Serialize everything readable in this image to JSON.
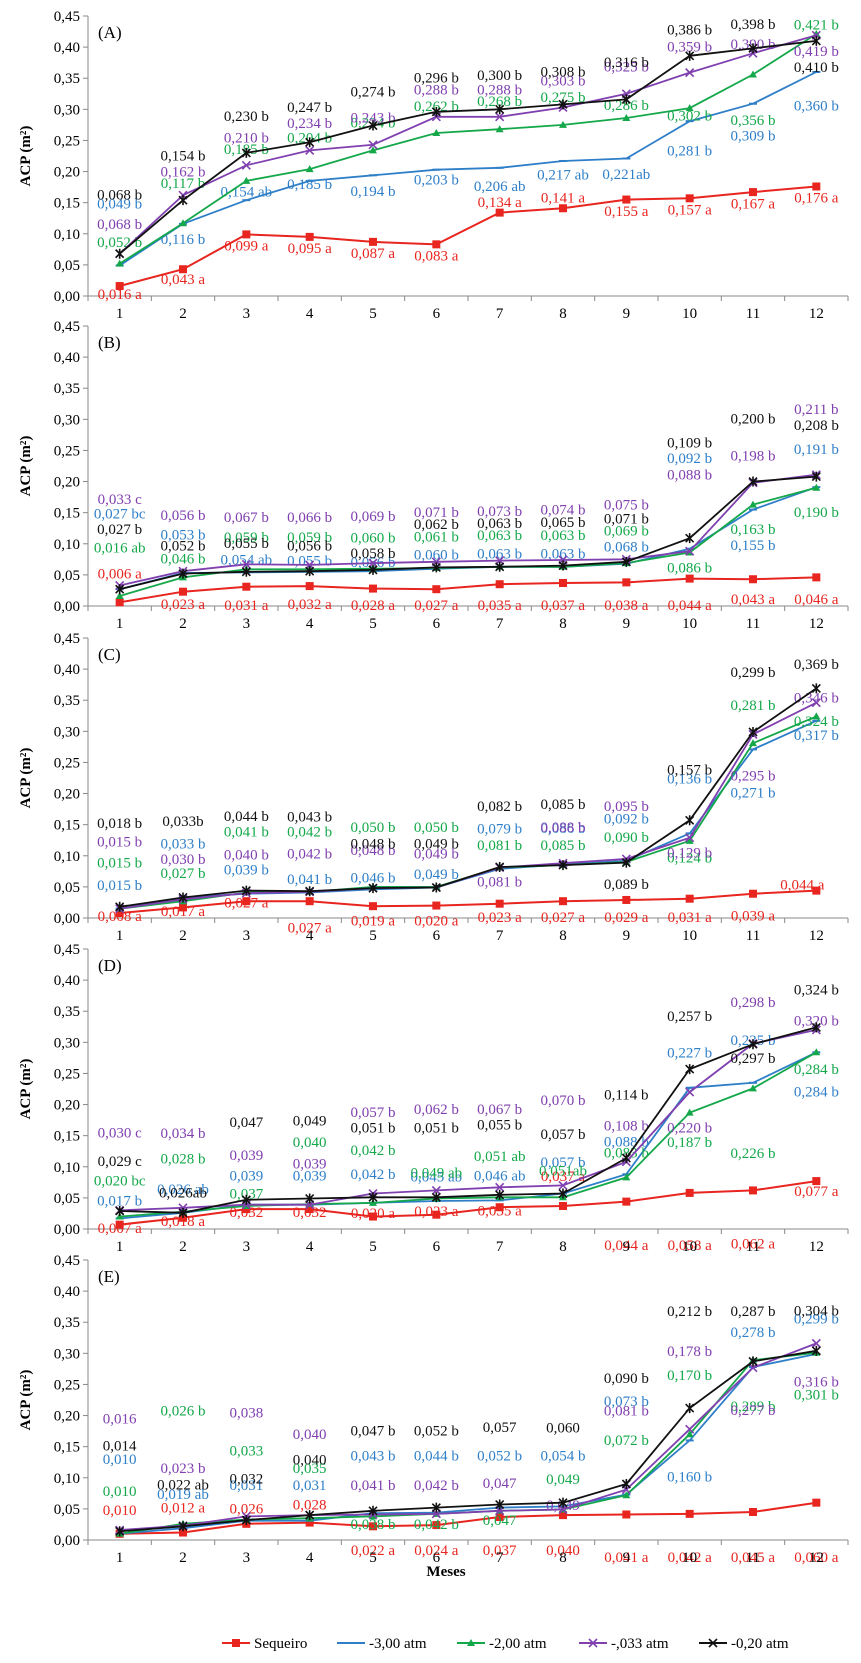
{
  "figure": {
    "xlabel": "Meses",
    "ylabel": "ACP (m²)",
    "series_colors": {
      "Sequeiro": "#e8251f",
      "-3,00 atm": "#2e7fc8",
      "-2,00 atm": "#14a84a",
      "-,033 atm": "#8040b0",
      "-0,20 atm": "#111111"
    },
    "legend": [
      "Sequeiro",
      "-3,00 atm",
      "-2,00 atm",
      "-,033 atm",
      "-0,20 atm"
    ]
  },
  "chart_data": [
    {
      "type": "line",
      "panel": "(A)",
      "x": [
        1,
        2,
        3,
        4,
        5,
        6,
        7,
        8,
        9,
        10,
        11,
        12
      ],
      "xlabel": "",
      "ylabel": "ACP (m²)",
      "ylim": [
        0,
        0.45
      ],
      "yticks": [
        "0,00",
        "0,05",
        "0,10",
        "0,15",
        "0,20",
        "0,25",
        "0,30",
        "0,35",
        "0,40",
        "0,45"
      ],
      "series": [
        {
          "name": "Sequeiro",
          "values": [
            0.016,
            0.043,
            0.099,
            0.095,
            0.087,
            0.083,
            0.134,
            0.141,
            0.155,
            0.157,
            0.167,
            0.176
          ],
          "labels": [
            "0,016 a",
            "0,043 a",
            "0,099 a",
            "0,095 a",
            "0,087 a",
            "0,083 a",
            "0,134 a",
            "0,141 a",
            "0,155 a",
            "0,157 a",
            "0,167 a",
            "0,176 a"
          ]
        },
        {
          "name": "-3,00 atm",
          "values": [
            0.049,
            0.116,
            0.154,
            0.185,
            0.194,
            0.203,
            0.206,
            0.217,
            0.221,
            0.281,
            0.309,
            0.36
          ],
          "labels": [
            "0,049 b",
            "0,116 b",
            "0,154 ab",
            "0,185 b",
            "0,194 b",
            "0,203 b",
            "0,206 ab",
            "0,217 ab",
            "0,221ab",
            "0,281 b",
            "0,309 b",
            "0,360 b"
          ]
        },
        {
          "name": "-2,00 atm",
          "values": [
            0.052,
            0.117,
            0.185,
            0.204,
            0.234,
            0.262,
            0.268,
            0.275,
            0.286,
            0.302,
            0.356,
            0.421
          ],
          "labels": [
            "0,052 b",
            "0,117 b",
            "0,185 b",
            "0,204 b",
            "0,234 b",
            "0,262 b",
            "0,268 b",
            "0,275 b",
            "0,286 b",
            "0,302 b",
            "0,356 b",
            "0,421 b"
          ]
        },
        {
          "name": "-,033 atm",
          "values": [
            0.068,
            0.162,
            0.21,
            0.234,
            0.243,
            0.288,
            0.288,
            0.303,
            0.325,
            0.359,
            0.39,
            0.419
          ],
          "labels": [
            "0,068 b",
            "0,162 b",
            "0,210 b",
            "0,234 b",
            "0,243 b",
            "0,288 b",
            "0,288 b",
            "0,303 b",
            "0,325 b",
            "0,359 b",
            "0,390 b",
            "0,419 b"
          ]
        },
        {
          "name": "-0,20 atm",
          "values": [
            0.068,
            0.154,
            0.23,
            0.247,
            0.274,
            0.296,
            0.3,
            0.308,
            0.316,
            0.386,
            0.398,
            0.41
          ],
          "labels": [
            "0,068 b",
            "0,154 b",
            "0,230 b",
            "0,247 b",
            "0,274 b",
            "0,296 b",
            "0,300 b",
            "0,308 b",
            "0,316 b",
            "0,386 b",
            "0,398 b",
            "0,410 b"
          ]
        }
      ]
    },
    {
      "type": "line",
      "panel": "(B)",
      "x": [
        1,
        2,
        3,
        4,
        5,
        6,
        7,
        8,
        9,
        10,
        11,
        12
      ],
      "xlabel": "",
      "ylabel": "ACP (m²)",
      "ylim": [
        0,
        0.45
      ],
      "yticks": [
        "0,00",
        "0,05",
        "0,10",
        "0,15",
        "0,20",
        "0,25",
        "0,30",
        "0,35",
        "0,40",
        "0,45"
      ],
      "series": [
        {
          "name": "Sequeiro",
          "values": [
            0.006,
            0.023,
            0.031,
            0.032,
            0.028,
            0.027,
            0.035,
            0.037,
            0.038,
            0.044,
            0.043,
            0.046
          ],
          "labels": [
            "0,006 a",
            "0,023 a",
            "0,031 a",
            "0,032 a",
            "0,028 a",
            "0,027 a",
            "0,035 a",
            "0,037 a",
            "0,038 a",
            "0,044 a",
            "0,043 a",
            "0,046 a"
          ]
        },
        {
          "name": "-3,00 atm",
          "values": [
            0.027,
            0.053,
            0.054,
            0.055,
            0.056,
            0.06,
            0.063,
            0.063,
            0.068,
            0.092,
            0.155,
            0.191
          ],
          "labels": [
            "0,027 bc",
            "0,053 b",
            "0,054 ab",
            "0,055 b",
            "0,056 b",
            "0,060 b",
            "0,063 b",
            "0,063 b",
            "0,068 b",
            "0,092 b",
            "0,155 b",
            "0,191 b"
          ]
        },
        {
          "name": "-2,00 atm",
          "values": [
            0.016,
            0.046,
            0.059,
            0.059,
            0.06,
            0.061,
            0.063,
            0.063,
            0.069,
            0.086,
            0.163,
            0.19
          ],
          "labels": [
            "0,016 ab",
            "0,046 b",
            "0,059 b",
            "0,059 b",
            "0,060 b",
            "0,061 b",
            "0,063 b",
            "0,063 b",
            "0,069 b",
            "0,086 b",
            "0,163 b",
            "0,190 b"
          ]
        },
        {
          "name": "-,033 atm",
          "values": [
            0.033,
            0.056,
            0.067,
            0.066,
            0.069,
            0.071,
            0.073,
            0.074,
            0.075,
            0.088,
            0.198,
            0.211
          ],
          "labels": [
            "0,033 c",
            "0,056 b",
            "0,067 b",
            "0,066 b",
            "0,069 b",
            "0,071 b",
            "0,073 b",
            "0,074 b",
            "0,075 b",
            "0,088 b",
            "0,198 b",
            "0,211 b"
          ]
        },
        {
          "name": "-0,20 atm",
          "values": [
            0.027,
            0.052,
            0.055,
            0.056,
            0.058,
            0.062,
            0.063,
            0.065,
            0.071,
            0.109,
            0.2,
            0.208
          ],
          "labels": [
            "0,027 b",
            "0,052 b",
            "0,055 b",
            "0,056 b",
            "0,058 b",
            "0,062 b",
            "0,063 b",
            "0,065 b",
            "0,071 b",
            "0,109 b",
            "0,200 b",
            "0,208 b"
          ]
        }
      ]
    },
    {
      "type": "line",
      "panel": "(C)",
      "x": [
        1,
        2,
        3,
        4,
        5,
        6,
        7,
        8,
        9,
        10,
        11,
        12
      ],
      "xlabel": "",
      "ylabel": "ACP (m²)",
      "ylim": [
        0,
        0.45
      ],
      "yticks": [
        "0,00",
        "0,05",
        "0,10",
        "0,15",
        "0,20",
        "0,25",
        "0,30",
        "0,35",
        "0,40",
        "0,45"
      ],
      "series": [
        {
          "name": "Sequeiro",
          "values": [
            0.008,
            0.017,
            0.027,
            0.027,
            0.019,
            0.02,
            0.023,
            0.027,
            0.029,
            0.031,
            0.039,
            0.044
          ],
          "labels": [
            "0,008 a",
            "0,017 a",
            "0,027 a",
            "0,027 a",
            "0,019 a",
            "0,020 a",
            "0,023 a",
            "0,027 a",
            "0,029 a",
            "0,031 a",
            "0,039 a",
            "0,044 a"
          ]
        },
        {
          "name": "-3,00 atm",
          "values": [
            0.015,
            0.033,
            0.039,
            0.041,
            0.046,
            0.049,
            0.079,
            0.086,
            0.092,
            0.136,
            0.271,
            0.317
          ],
          "labels": [
            "0,015 b",
            "0,033 b",
            "0,039 b",
            "0,041 b",
            "0,046 b",
            "0,049 b",
            "0,079 b",
            "0,086 b",
            "0,092 b",
            "0,136 b",
            "0,271 b",
            "0,317 b"
          ]
        },
        {
          "name": "-2,00 atm",
          "values": [
            0.015,
            0.027,
            0.041,
            0.042,
            0.05,
            0.05,
            0.081,
            0.085,
            0.09,
            0.124,
            0.281,
            0.324
          ],
          "labels": [
            "0,015 b",
            "0,027 b",
            "0,041 b",
            "0,042 b",
            "0,050 b",
            "0,050 b",
            "0,081 b",
            "0,085 b",
            "0,090 b",
            "0,124 b",
            "0,281 b",
            "0,324 b"
          ]
        },
        {
          "name": "-,033 atm",
          "values": [
            0.015,
            0.03,
            0.04,
            0.042,
            0.048,
            0.049,
            0.081,
            0.088,
            0.095,
            0.129,
            0.295,
            0.346
          ],
          "labels": [
            "0,015 b",
            "0,030 b",
            "0,040 b",
            "0,042 b",
            "0,048 b",
            "0,049 b",
            "0,081 b",
            "0,088 b",
            "0,095 b",
            "0,129 b",
            "0,295 b",
            "0,346 b"
          ]
        },
        {
          "name": "-0,20 atm",
          "values": [
            0.018,
            0.033,
            0.044,
            0.043,
            0.048,
            0.049,
            0.082,
            0.085,
            0.089,
            0.157,
            0.299,
            0.369
          ],
          "labels": [
            "0,018 b",
            "0,033b",
            "0,044 b",
            "0,043 b",
            "0,048 b",
            "0,049 b",
            "0,082 b",
            "0,085 b",
            "0,089 b",
            "0,157 b",
            "0,299 b",
            "0,369 b"
          ]
        }
      ]
    },
    {
      "type": "line",
      "panel": "(D)",
      "x": [
        1,
        2,
        3,
        4,
        5,
        6,
        7,
        8,
        9,
        10,
        11,
        12
      ],
      "xlabel": "",
      "ylabel": "ACP (m²)",
      "ylim": [
        0,
        0.45
      ],
      "yticks": [
        "0,00",
        "0,05",
        "0,10",
        "0,15",
        "0,20",
        "0,25",
        "0,30",
        "0,35",
        "0,40",
        "0,45"
      ],
      "series": [
        {
          "name": "Sequeiro",
          "values": [
            0.007,
            0.018,
            0.032,
            0.032,
            0.02,
            0.023,
            0.035,
            0.037,
            0.044,
            0.058,
            0.062,
            0.077
          ],
          "labels": [
            "0,007 a",
            "0,018 a",
            "0,032",
            "0,032",
            "0,020 a",
            "0,023 a",
            "0,035 a",
            "0,037 a",
            "0,044 a",
            "0,058 a",
            "0,062 a",
            "0,077 a"
          ]
        },
        {
          "name": "-3,00 atm",
          "values": [
            0.017,
            0.026,
            0.039,
            0.039,
            0.042,
            0.045,
            0.046,
            0.057,
            0.088,
            0.227,
            0.235,
            0.284
          ],
          "labels": [
            "0,017 b",
            "0,026 ab",
            "0,039",
            "0,039",
            "0,042 b",
            "0,045 ab",
            "0,046 ab",
            "0,057 b",
            "0,088 b",
            "0,227 b",
            "0,235 b",
            "0,284 b"
          ]
        },
        {
          "name": "-2,00 atm",
          "values": [
            0.02,
            0.028,
            0.037,
            0.04,
            0.042,
            0.049,
            0.051,
            0.051,
            0.083,
            0.187,
            0.226,
            0.284
          ],
          "labels": [
            "0,020 bc",
            "0,028 b",
            "0,037",
            "0,040",
            "0,042 b",
            "0,049 ab",
            "0,051 ab",
            "0,051ab",
            "0,083 b",
            "0,187 b",
            "0,226 b",
            "0,284 b"
          ]
        },
        {
          "name": "-,033 atm",
          "values": [
            0.03,
            0.034,
            0.039,
            0.039,
            0.057,
            0.062,
            0.067,
            0.07,
            0.108,
            0.22,
            0.298,
            0.32
          ],
          "labels": [
            "0,030 c",
            "0,034 b",
            "0,039",
            "0,039",
            "0,057 b",
            "0,062 b",
            "0,067 b",
            "0,070 b",
            "0,108 b",
            "0,220 b",
            "0,298 b",
            "0,320 b"
          ]
        },
        {
          "name": "-0,20 atm",
          "values": [
            0.029,
            0.026,
            0.047,
            0.049,
            0.051,
            0.051,
            0.055,
            0.057,
            0.114,
            0.257,
            0.297,
            0.324
          ],
          "labels": [
            "0,029 c",
            "0,026ab",
            "0,047",
            "0,049",
            "0,051 b",
            "0,051 b",
            "0,055 b",
            "0,057 b",
            "0,114 b",
            "0,257 b",
            "0,297 b",
            "0,324 b"
          ]
        }
      ]
    },
    {
      "type": "line",
      "panel": "(E)",
      "x": [
        1,
        2,
        3,
        4,
        5,
        6,
        7,
        8,
        9,
        10,
        11,
        12
      ],
      "xlabel": "Meses",
      "ylabel": "ACP (m²)",
      "ylim": [
        0,
        0.45
      ],
      "yticks": [
        "0,00",
        "0,05",
        "0,10",
        "0,15",
        "0,20",
        "0,25",
        "0,30",
        "0,35",
        "0,40",
        "0,45"
      ],
      "series": [
        {
          "name": "Sequeiro",
          "values": [
            0.01,
            0.012,
            0.026,
            0.028,
            0.022,
            0.024,
            0.037,
            0.04,
            0.041,
            0.042,
            0.045,
            0.06
          ],
          "labels": [
            "0,010",
            "0,012 a",
            "0,026",
            "0,028",
            "0,022 a",
            "0,024 a",
            "0,037",
            "0,040",
            "0,041 a",
            "0,042 a",
            "0,045 a",
            "0,060 a"
          ]
        },
        {
          "name": "-3,00 atm",
          "values": [
            0.01,
            0.019,
            0.031,
            0.031,
            0.043,
            0.044,
            0.052,
            0.054,
            0.073,
            0.16,
            0.278,
            0.299
          ],
          "labels": [
            "0,010",
            "0,019 ab",
            "0,031",
            "0,031",
            "0,043 b",
            "0,044 b",
            "0,052 b",
            "0,054 b",
            "0,073 b",
            "0,160 b",
            "0,278 b",
            "0,299 b"
          ]
        },
        {
          "name": "-2,00 atm",
          "values": [
            0.01,
            0.026,
            0.033,
            0.035,
            0.038,
            0.042,
            0.047,
            0.049,
            0.072,
            0.17,
            0.289,
            0.301
          ],
          "labels": [
            "0,010",
            "0,026 b",
            "0,033",
            "0,035",
            "0,038 b",
            "0,042 b",
            "0,047",
            "0,049",
            "0,072 b",
            "0,170 b",
            "0,289 b",
            "0,301 b"
          ]
        },
        {
          "name": "-,033 atm",
          "values": [
            0.016,
            0.023,
            0.038,
            0.04,
            0.041,
            0.042,
            0.047,
            0.049,
            0.081,
            0.178,
            0.277,
            0.316
          ],
          "labels": [
            "0,016",
            "0,023 b",
            "0,038",
            "0,040",
            "0,041 b",
            "0,042 b",
            "0,047",
            "0,049",
            "0,081 b",
            "0,178 b",
            "0,277 b",
            "0,316 b"
          ]
        },
        {
          "name": "-0,20 atm",
          "values": [
            0.014,
            0.022,
            0.032,
            0.04,
            0.047,
            0.052,
            0.057,
            0.06,
            0.09,
            0.212,
            0.287,
            0.304
          ],
          "labels": [
            "0,014",
            "0,022 ab",
            "0,032",
            "0,040",
            "0,047 b",
            "0,052 b",
            "0,057",
            "0,060",
            "0,090 b",
            "0,212 b",
            "0,287 b",
            "0,304 b"
          ]
        }
      ]
    }
  ]
}
